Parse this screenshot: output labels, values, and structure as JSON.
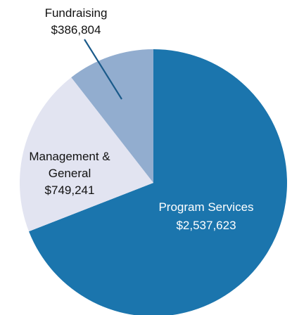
{
  "chart_data": {
    "type": "pie",
    "title": "",
    "categories": [
      "Program Services",
      "Management & General",
      "Fundraising"
    ],
    "values": [
      2537623,
      749241,
      386804
    ],
    "value_labels": [
      "$2,537,623",
      "$749,241",
      "$386,804"
    ],
    "colors": [
      "#1b75ad",
      "#e2e4f1",
      "#92adcf"
    ],
    "start_angle_deg": 0,
    "direction": "clockwise",
    "legend": "none",
    "labels": {
      "program_services": {
        "name": "Program Services",
        "value": "$2,537,623"
      },
      "management_general": {
        "name_line1": "Management &",
        "name_line2": "General",
        "value": "$749,241"
      },
      "fundraising": {
        "name": "Fundraising",
        "value": "$386,804"
      }
    }
  }
}
